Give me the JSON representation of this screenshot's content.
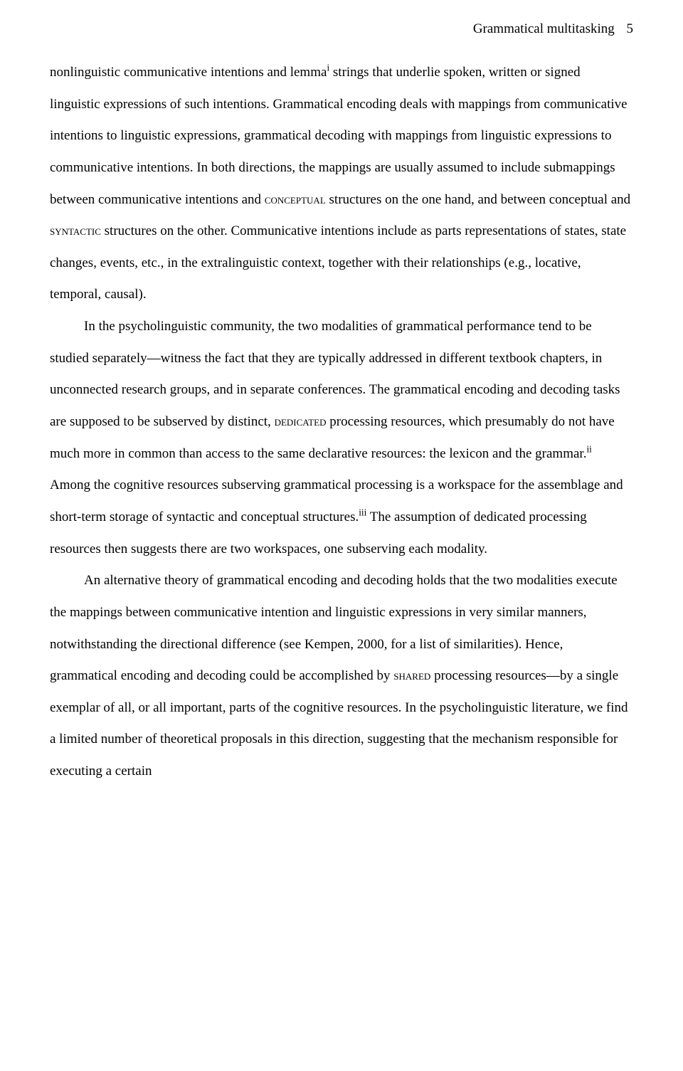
{
  "header": {
    "running_title": "Grammatical multitasking",
    "page_number": "5"
  },
  "paragraphs": {
    "p1_a": "nonlinguistic communicative intentions and lemma",
    "p1_sup1": "i",
    "p1_b": " strings that underlie spoken, written or signed linguistic expressions of such intentions. Grammatical encoding deals with mappings from communicative intentions to linguistic expressions, grammatical decoding with mappings from linguistic expressions to communicative intentions. In both directions, the mappings are usually assumed to include submappings between communicative intentions and ",
    "p1_sc1": "conceptual",
    "p1_c": " structures on the one hand, and between conceptual and ",
    "p1_sc2": "syntactic",
    "p1_d": " structures on the other. Communicative intentions include as parts representations of states, state changes, events, etc., in the extralinguistic context, together with their relationships (e.g., locative, temporal, causal).",
    "p2_a": "In the psycholinguistic community, the two modalities of grammatical performance tend to be studied separately—witness the fact that they are typically addressed in different textbook chapters, in unconnected research groups, and in separate conferences. The grammatical encoding and decoding tasks are supposed to be subserved by distinct, ",
    "p2_sc1": "dedicated",
    "p2_b": " processing resources, which presumably do not have much more in common than access to the same declarative resources: the lexicon and the grammar.",
    "p2_sup1": "ii",
    "p2_c": " Among the cognitive resources subserving grammatical processing is a workspace for the assemblage and short-term storage of syntactic and conceptual structures.",
    "p2_sup2": "iii",
    "p2_d": " The assumption of dedicated processing resources then suggests there are two workspaces, one subserving each modality.",
    "p3_a": "An alternative theory of grammatical encoding and decoding holds that the two modalities execute the mappings between communicative intention and linguistic expressions in very similar manners, notwithstanding the directional difference (see Kempen, 2000, for a list of similarities). Hence, grammatical encoding and decoding could be accomplished by ",
    "p3_sc1": "shared",
    "p3_b": " processing resources—by a single exemplar of all, or all important, parts of the cognitive resources. In the psycholinguistic literature, we find a limited number of theoretical proposals in this direction, suggesting that the mechanism responsible for executing a certain"
  }
}
